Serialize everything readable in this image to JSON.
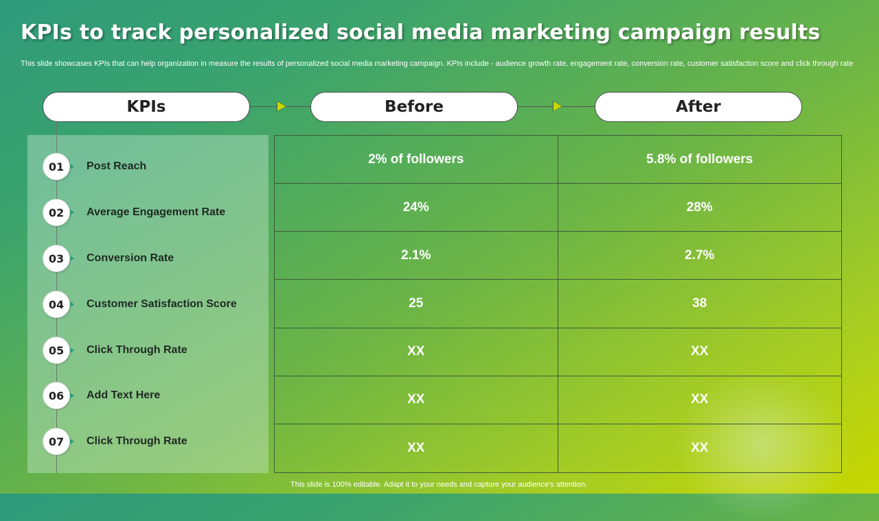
{
  "title": "KPIs to track personalized social media marketing campaign results",
  "subtitle": "This slide showcases KPIs that can help organization in measure the results of personalized social media marketing campaign. KPIs include - audience growth rate, engagement rate, conversion rate, customer satisfaction score and click through rate",
  "headers": {
    "kpis": "KPIs",
    "before": "Before",
    "after": "After"
  },
  "kpis": [
    {
      "num": "01",
      "label": "Post Reach"
    },
    {
      "num": "02",
      "label": "Average Engagement Rate"
    },
    {
      "num": "03",
      "label": "Conversion Rate"
    },
    {
      "num": "04",
      "label": "Customer Satisfaction Score"
    },
    {
      "num": "05",
      "label": "Click Through Rate"
    },
    {
      "num": "06",
      "label": "Add Text Here"
    },
    {
      "num": "07",
      "label": "Click Through Rate"
    }
  ],
  "rows": [
    {
      "before": "2% of followers",
      "after": "5.8% of followers"
    },
    {
      "before": "24%",
      "after": "28%"
    },
    {
      "before": "2.1%",
      "after": "2.7%"
    },
    {
      "before": "25",
      "after": "38"
    },
    {
      "before": "XX",
      "after": "XX"
    },
    {
      "before": "XX",
      "after": "XX"
    },
    {
      "before": "XX",
      "after": "XX"
    }
  ],
  "footer": "This slide is 100% editable. Adapt it to your needs and capture your audience's attention.",
  "colors": {
    "accent": "#c8d800",
    "teal": "#2e9a7a",
    "green": "#6db545"
  }
}
